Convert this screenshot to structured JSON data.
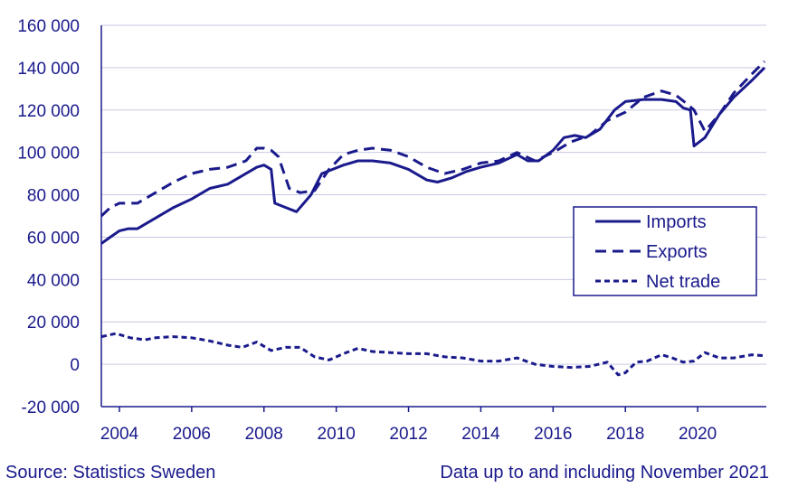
{
  "footer": {
    "source": "Source: Statistics Sweden",
    "note": "Data up to and including November 2021"
  },
  "colors": {
    "series": "#1a1a8c",
    "grid": "#c9c9e6",
    "text": "#1a1a8c"
  },
  "chart_data": {
    "type": "line",
    "title": "",
    "xlabel": "",
    "ylabel": "",
    "xlim": [
      2003.5,
      2021.9
    ],
    "ylim": [
      -20000,
      160000
    ],
    "yticks": [
      -20000,
      0,
      20000,
      40000,
      60000,
      80000,
      100000,
      120000,
      140000,
      160000
    ],
    "ytick_labels": [
      "-20 000",
      "0",
      "20 000",
      "40 000",
      "60 000",
      "80 000",
      "100 000",
      "120 000",
      "140 000",
      "160 000"
    ],
    "xticks": [
      2004,
      2006,
      2008,
      2010,
      2012,
      2014,
      2016,
      2018,
      2020
    ],
    "xtick_labels": [
      "2004",
      "2006",
      "2008",
      "2010",
      "2012",
      "2014",
      "2016",
      "2018",
      "2020"
    ],
    "grid": "horizontal",
    "legend_position": "right",
    "series": [
      {
        "name": "Imports",
        "style": "solid",
        "x": [
          2003.5,
          2003.75,
          2004.0,
          2004.25,
          2004.5,
          2005.0,
          2005.5,
          2006.0,
          2006.5,
          2007.0,
          2007.5,
          2007.8,
          2008.0,
          2008.2,
          2008.3,
          2008.6,
          2008.9,
          2009.3,
          2009.6,
          2009.9,
          2010.2,
          2010.6,
          2011.0,
          2011.5,
          2012.0,
          2012.5,
          2012.8,
          2013.2,
          2013.6,
          2014.0,
          2014.5,
          2015.0,
          2015.3,
          2015.6,
          2016.0,
          2016.3,
          2016.6,
          2016.9,
          2017.3,
          2017.7,
          2018.0,
          2018.5,
          2019.0,
          2019.4,
          2019.6,
          2019.8,
          2019.9,
          2020.2,
          2020.6,
          2021.0,
          2021.5,
          2021.85
        ],
        "y": [
          57000,
          60000,
          63000,
          64000,
          64000,
          69000,
          74000,
          78000,
          83000,
          85000,
          90000,
          93000,
          94000,
          92000,
          76000,
          74000,
          72000,
          80000,
          90000,
          92000,
          94000,
          96000,
          96000,
          95000,
          92000,
          87000,
          86000,
          88000,
          91000,
          93000,
          95000,
          99000,
          96000,
          96000,
          101000,
          107000,
          108000,
          107000,
          111000,
          120000,
          124000,
          125000,
          125000,
          124000,
          121000,
          120000,
          103000,
          107000,
          118000,
          126000,
          134000,
          140000
        ]
      },
      {
        "name": "Exports",
        "style": "dashed",
        "x": [
          2003.5,
          2003.75,
          2004.0,
          2004.5,
          2005.0,
          2005.5,
          2006.0,
          2006.5,
          2007.0,
          2007.5,
          2007.8,
          2008.0,
          2008.2,
          2008.4,
          2008.7,
          2009.0,
          2009.4,
          2009.8,
          2010.2,
          2010.6,
          2011.0,
          2011.5,
          2012.0,
          2012.5,
          2013.0,
          2013.5,
          2014.0,
          2014.5,
          2015.0,
          2015.5,
          2016.0,
          2016.5,
          2017.0,
          2017.5,
          2018.0,
          2018.5,
          2019.0,
          2019.4,
          2019.7,
          2019.9,
          2020.2,
          2020.6,
          2021.0,
          2021.5,
          2021.85
        ],
        "y": [
          70000,
          74000,
          76000,
          76000,
          81000,
          86000,
          90000,
          92000,
          93000,
          96000,
          102000,
          102000,
          101000,
          98000,
          83000,
          81000,
          82000,
          92000,
          99000,
          101000,
          102000,
          101000,
          98000,
          93000,
          90000,
          92000,
          95000,
          96000,
          100000,
          96000,
          100000,
          105000,
          108000,
          115000,
          119000,
          126000,
          129000,
          127000,
          123000,
          120000,
          110000,
          118000,
          128000,
          137000,
          143000
        ]
      },
      {
        "name": "Net trade",
        "style": "dotted",
        "x": [
          2003.5,
          2003.9,
          2004.3,
          2004.7,
          2005.0,
          2005.5,
          2006.0,
          2006.5,
          2007.0,
          2007.4,
          2007.8,
          2008.2,
          2008.6,
          2009.0,
          2009.4,
          2009.8,
          2010.2,
          2010.6,
          2011.0,
          2011.5,
          2012.0,
          2012.5,
          2013.0,
          2013.5,
          2014.0,
          2014.5,
          2015.0,
          2015.5,
          2016.0,
          2016.5,
          2017.0,
          2017.5,
          2017.8,
          2018.0,
          2018.3,
          2018.6,
          2019.0,
          2019.3,
          2019.6,
          2019.9,
          2020.2,
          2020.6,
          2021.0,
          2021.5,
          2021.85
        ],
        "y": [
          13000,
          14500,
          12500,
          11500,
          12500,
          13000,
          12500,
          11000,
          9000,
          8000,
          10500,
          6500,
          8000,
          8000,
          3500,
          2000,
          5000,
          7500,
          6000,
          5500,
          5000,
          5000,
          3500,
          3000,
          1500,
          1500,
          3000,
          0,
          -1000,
          -1500,
          -1000,
          1000,
          -5000,
          -4000,
          1000,
          1500,
          4500,
          3000,
          1000,
          1500,
          5500,
          3000,
          3000,
          4500,
          4000
        ]
      }
    ]
  }
}
